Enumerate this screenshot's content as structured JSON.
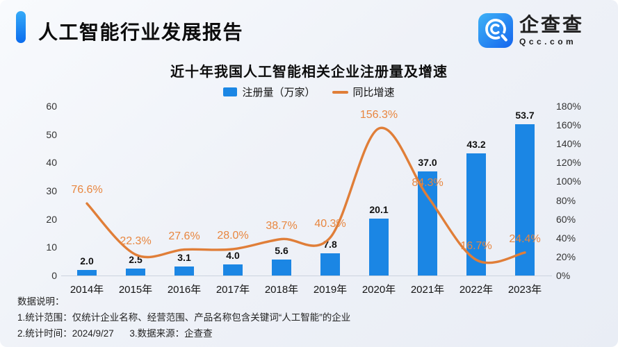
{
  "header": {
    "title": "人工智能行业发展报告"
  },
  "logo": {
    "name": "企查查",
    "domain": "Qcc.com",
    "icon": "qcc-magnifier-icon",
    "brand_color": "#1e7ef0"
  },
  "chart_data": {
    "type": "combo-bar-line",
    "title": "近十年我国人工智能相关企业注册量及增速",
    "categories": [
      "2014年",
      "2015年",
      "2016年",
      "2017年",
      "2018年",
      "2019年",
      "2020年",
      "2021年",
      "2022年",
      "2023年"
    ],
    "series": [
      {
        "name": "注册量（万家）",
        "type": "bar",
        "axis": "left",
        "color": "#1b86e4",
        "values": [
          2.0,
          2.5,
          3.1,
          4.0,
          5.6,
          7.8,
          20.1,
          37.0,
          43.2,
          53.7
        ]
      },
      {
        "name": "同比增速",
        "type": "line",
        "axis": "right",
        "color": "#e07e38",
        "unit": "%",
        "values": [
          76.6,
          22.3,
          27.6,
          28.0,
          38.7,
          40.3,
          156.3,
          84.3,
          16.7,
          24.4
        ]
      }
    ],
    "left_axis": {
      "min": 0,
      "max": 60,
      "step": 10,
      "suffix": ""
    },
    "right_axis": {
      "min": 0,
      "max": 180,
      "step": 20,
      "suffix": "%"
    },
    "legend_position": "top",
    "grid": false
  },
  "footer": {
    "heading": "数据说明：",
    "notes": [
      "1.统计范围：仅统计企业名称、经营范围、产品名称包含关键词“人工智能”的企业",
      "2.统计时间：2024/9/27      3.数据来源：企查查"
    ]
  }
}
